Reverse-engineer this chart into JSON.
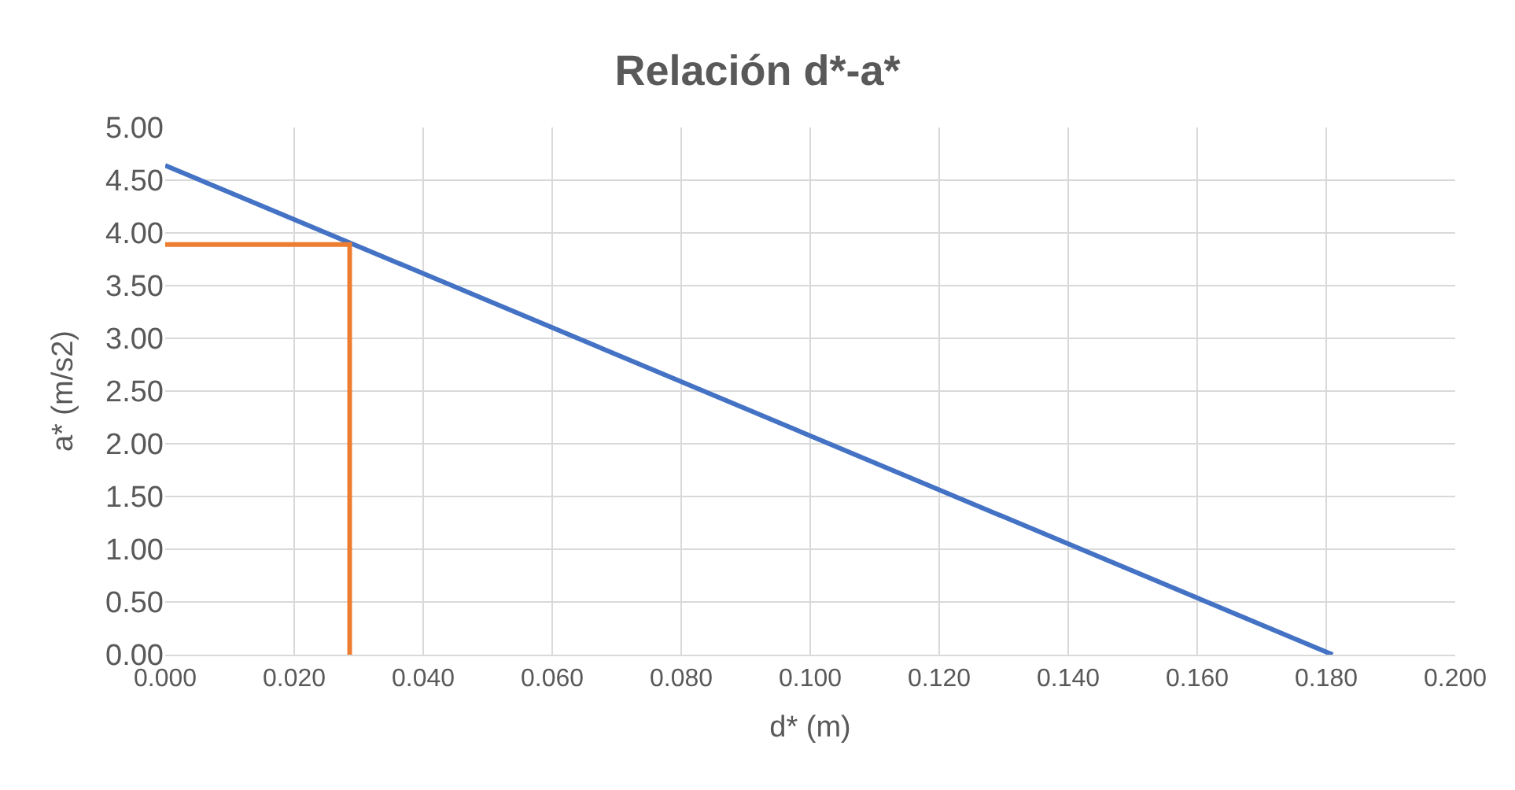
{
  "chart_data": {
    "type": "line",
    "title": "Relación d*-a*",
    "xlabel": "d* (m)",
    "ylabel": "a* (m/s2)",
    "series": [
      {
        "color": "#4472c4",
        "x": [
          0,
          0.181
        ],
        "values": [
          4.64,
          0
        ]
      },
      {
        "color": "#ed7d31",
        "x": [
          0,
          0.0286,
          0.0286
        ],
        "values": [
          3.89,
          3.89,
          0
        ]
      }
    ],
    "xlim": [
      0,
      0.2
    ],
    "xticks": [
      {
        "value": 0,
        "label": "0.000"
      },
      {
        "value": 0.02,
        "label": "0.020"
      },
      {
        "value": 0.04,
        "label": "0.040"
      },
      {
        "value": 0.06,
        "label": "0.060"
      },
      {
        "value": 0.08,
        "label": "0.080"
      },
      {
        "value": 0.1,
        "label": "0.100"
      },
      {
        "value": 0.12,
        "label": "0.120"
      },
      {
        "value": 0.14,
        "label": "0.140"
      },
      {
        "value": 0.16,
        "label": "0.160"
      },
      {
        "value": 0.18,
        "label": "0.180"
      },
      {
        "value": 0.2,
        "label": "0.200"
      }
    ],
    "ylim": [
      0,
      5
    ],
    "yticks": [
      {
        "value": 0,
        "label": "0.00"
      },
      {
        "value": 0.5,
        "label": "0.50"
      },
      {
        "value": 1,
        "label": "1.00"
      },
      {
        "value": 1.5,
        "label": "1.50"
      },
      {
        "value": 2,
        "label": "2.00"
      },
      {
        "value": 2.5,
        "label": "2.50"
      },
      {
        "value": 3,
        "label": "3.00"
      },
      {
        "value": 3.5,
        "label": "3.50"
      },
      {
        "value": 4,
        "label": "4.00"
      },
      {
        "value": 4.5,
        "label": "4.50"
      },
      {
        "value": 5,
        "label": "5.00"
      }
    ],
    "grid": true,
    "marker": "none",
    "line_style": "solid"
  }
}
